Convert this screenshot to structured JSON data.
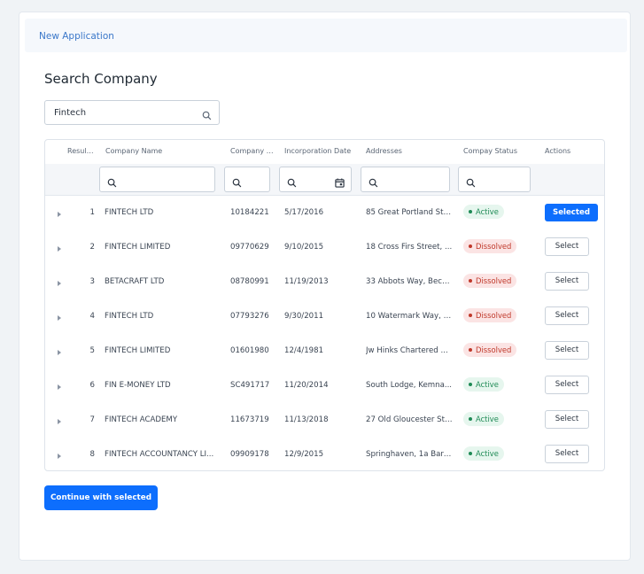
{
  "header": {
    "title": "New Application"
  },
  "page_title": "Search Company",
  "search": {
    "value": "Fintech",
    "icon": "search-icon"
  },
  "table": {
    "columns": [
      "Result...",
      "Company Name",
      "Company N...",
      "Incorporation Date",
      "Addresses",
      "Compay Status",
      "Actions"
    ],
    "rows": [
      {
        "index": "1",
        "name": "FINTECH LTD",
        "number": "10184221",
        "date": "5/17/2016",
        "address": "85 Great Portland Str...",
        "status": "Active",
        "action": "Selected"
      },
      {
        "index": "2",
        "name": "FINTECH LIMITED",
        "number": "09770629",
        "date": "9/10/2015",
        "address": "18 Cross Firs Street, ...",
        "status": "Dissolved",
        "action": "Select"
      },
      {
        "index": "3",
        "name": "BETACRAFT LTD",
        "number": "08780991",
        "date": "11/19/2013",
        "address": "33 Abbots Way, Beck...",
        "status": "Dissolved",
        "action": "Select"
      },
      {
        "index": "4",
        "name": "FINTECH LTD",
        "number": "07793276",
        "date": "9/30/2011",
        "address": "10 Watermark Way, F...",
        "status": "Dissolved",
        "action": "Select"
      },
      {
        "index": "5",
        "name": "FINTECH LIMITED",
        "number": "01601980",
        "date": "12/4/1981",
        "address": "Jw Hinks Chartered ...",
        "status": "Dissolved",
        "action": "Select"
      },
      {
        "index": "6",
        "name": "FIN E-MONEY LTD",
        "number": "SC491717",
        "date": "11/20/2014",
        "address": "South Lodge, Kemna...",
        "status": "Active",
        "action": "Select"
      },
      {
        "index": "7",
        "name": "FINTECH ACADEMY",
        "number": "11673719",
        "date": "11/13/2018",
        "address": "27 Old Gloucester Str...",
        "status": "Active",
        "action": "Select"
      },
      {
        "index": "8",
        "name": "FINTECH ACCOUNTANCY LI...",
        "number": "09909178",
        "date": "12/9/2015",
        "address": "Springhaven, 1a Barn...",
        "status": "Active",
        "action": "Select"
      }
    ]
  },
  "continue_label": "Continue with selected",
  "colors": {
    "primary": "#0d6efd",
    "active": "#1e8a55",
    "dissolved": "#c0392b",
    "header_link": "#3a77c9"
  }
}
